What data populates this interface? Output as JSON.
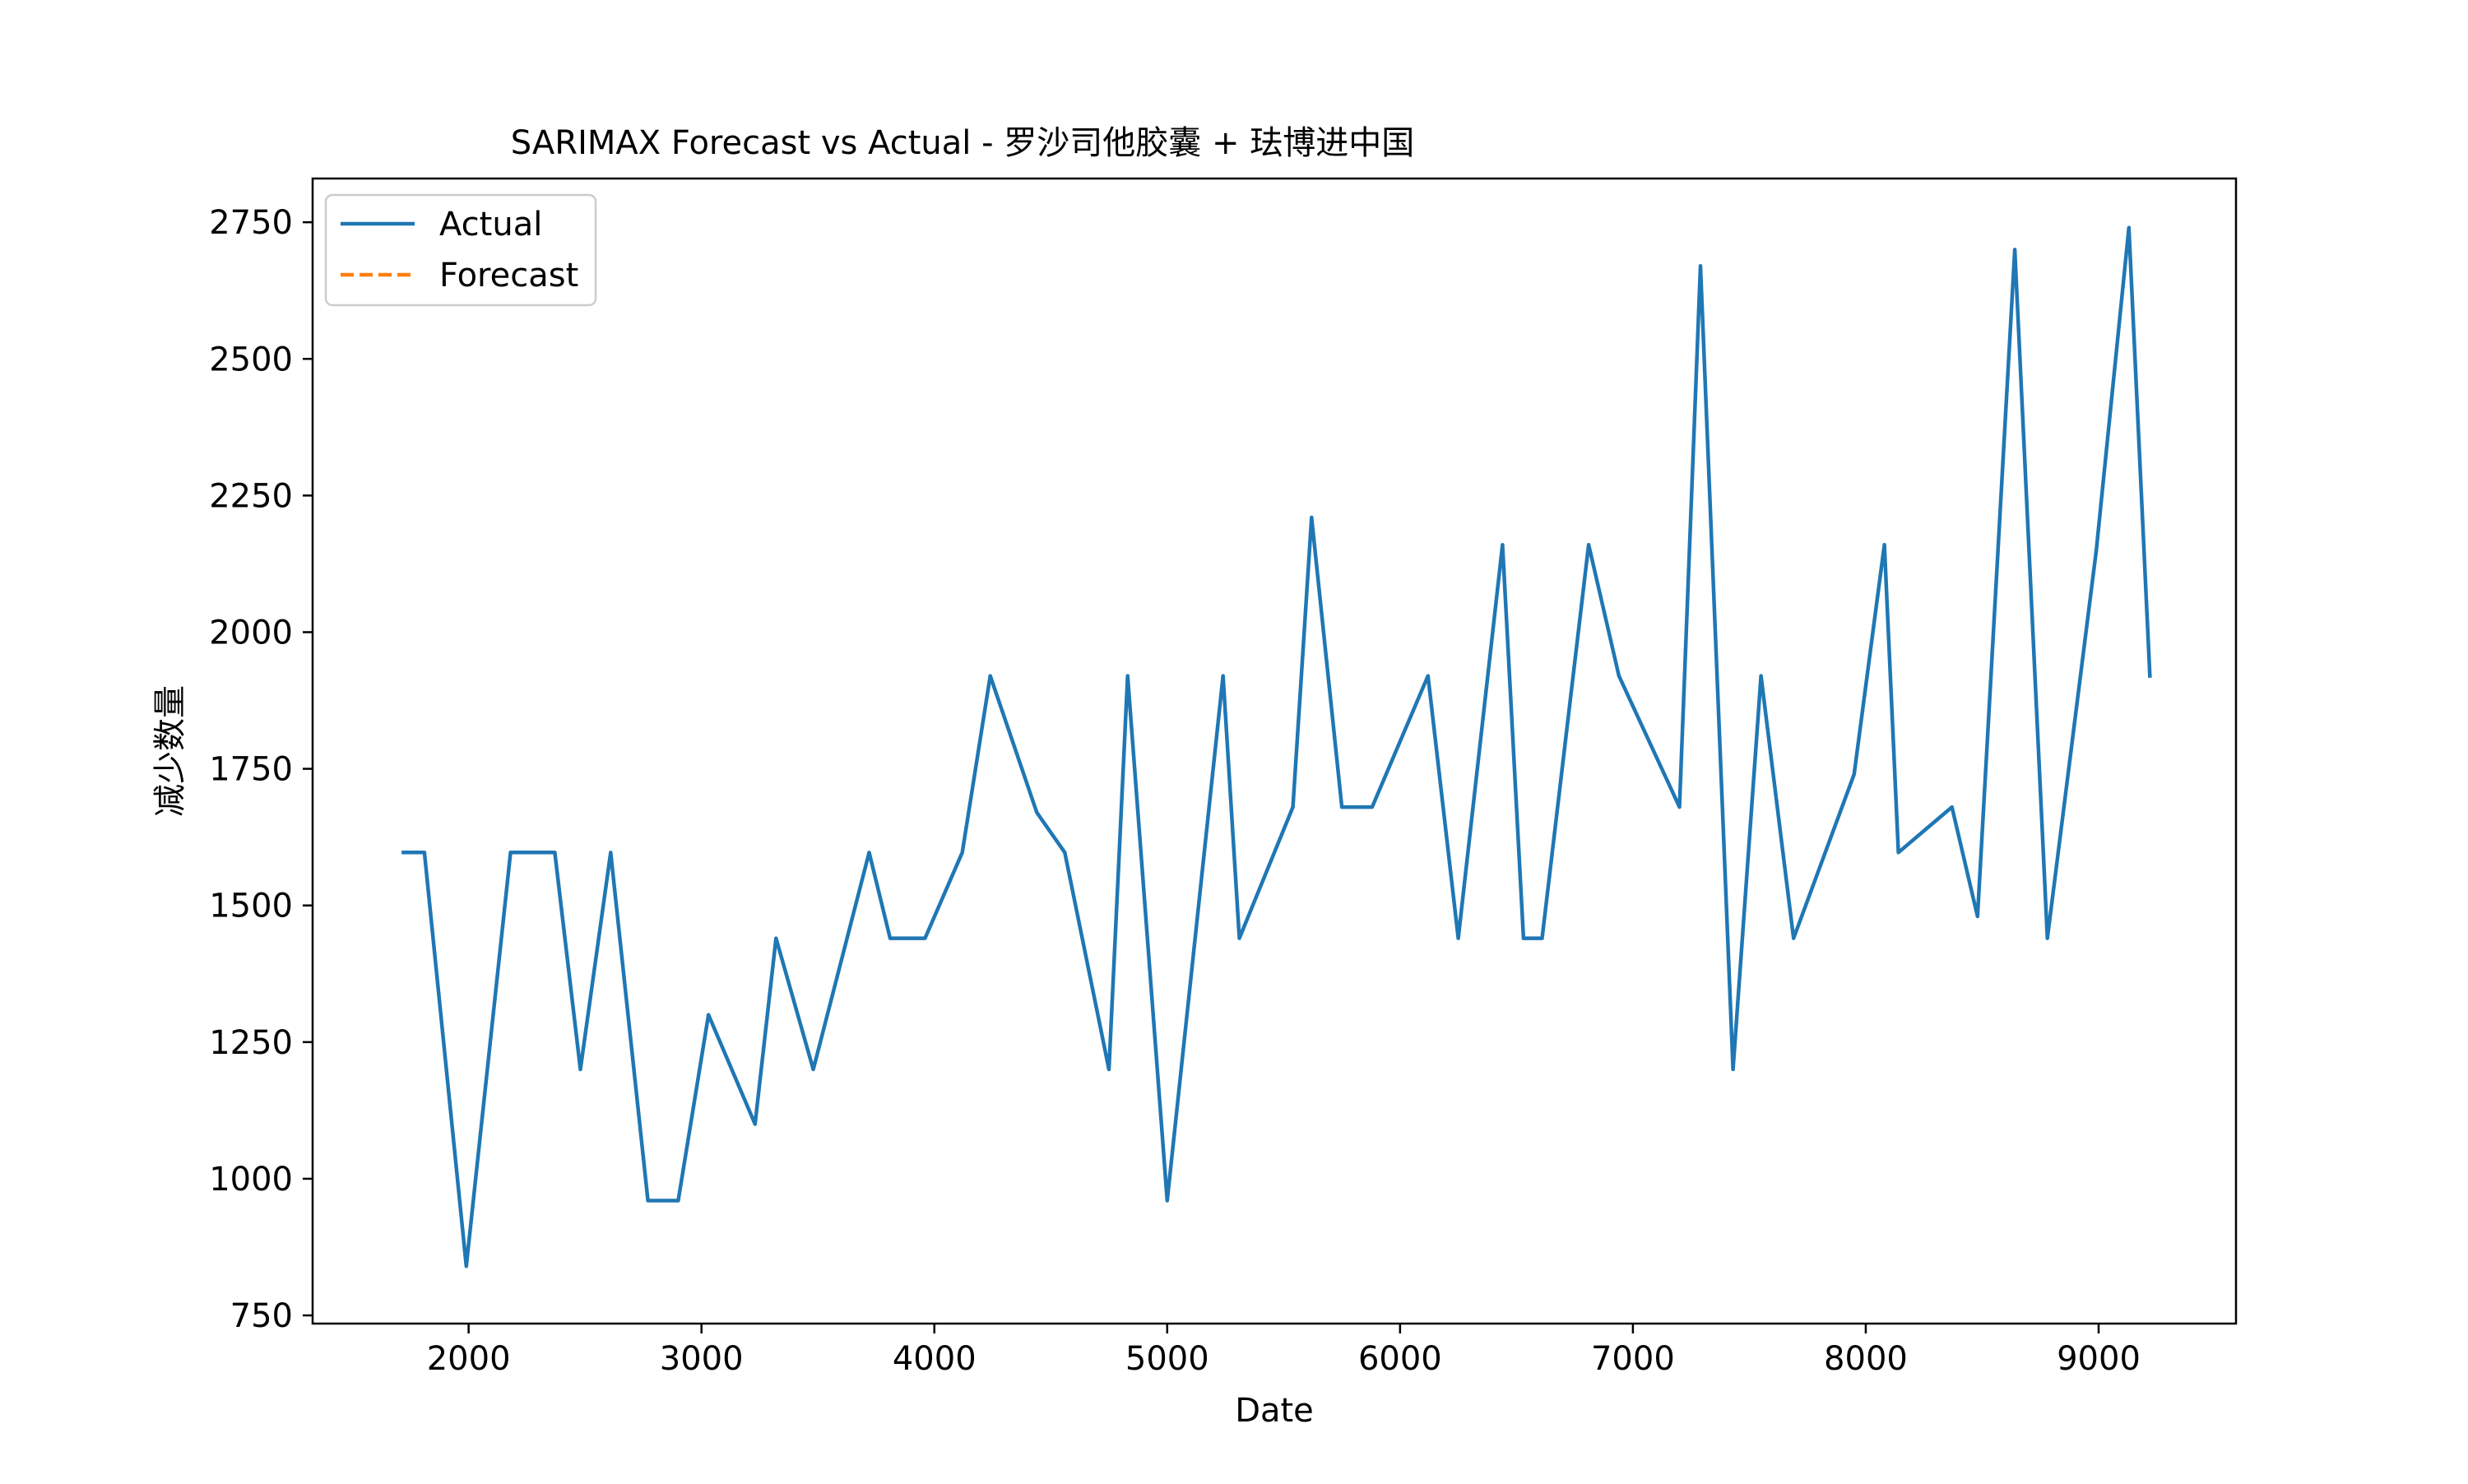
{
  "chart_data": {
    "type": "line",
    "title": "SARIMAX Forecast vs Actual - 罗沙司他胶囊 + 珐博进中国",
    "xlabel": "Date",
    "ylabel": "减少数量",
    "xlim": [
      1330,
      9590
    ],
    "ylim": [
      735,
      2830
    ],
    "xticks": [
      2000,
      3000,
      4000,
      5000,
      6000,
      7000,
      8000,
      9000
    ],
    "yticks": [
      750,
      1000,
      1250,
      1500,
      1750,
      2000,
      2250,
      2500,
      2750
    ],
    "grid": false,
    "legend_position": "upper left",
    "series": [
      {
        "name": "Actual",
        "color": "#1f77b4",
        "style": "solid",
        "x": [
          1720,
          1810,
          1990,
          2180,
          2370,
          2480,
          2610,
          2770,
          2900,
          3030,
          3230,
          3320,
          3480,
          3720,
          3810,
          3960,
          4120,
          4240,
          4440,
          4560,
          4750,
          4830,
          5000,
          5240,
          5310,
          5540,
          5620,
          5750,
          5880,
          6120,
          6250,
          6440,
          6530,
          6610,
          6810,
          6940,
          7200,
          7290,
          7430,
          7550,
          7690,
          7950,
          8080,
          8140,
          8370,
          8480,
          8640,
          8780,
          8990,
          9130,
          9220
        ],
        "y": [
          1597,
          1597,
          840,
          1597,
          1597,
          1200,
          1597,
          960,
          960,
          1300,
          1100,
          1440,
          1200,
          1597,
          1440,
          1440,
          1597,
          1920,
          1670,
          1597,
          1200,
          1920,
          960,
          1920,
          1440,
          1680,
          2210,
          1680,
          1680,
          1920,
          1440,
          2160,
          1440,
          1440,
          2160,
          1920,
          1680,
          2670,
          1200,
          1920,
          1440,
          1740,
          2160,
          1597,
          1680,
          1480,
          2700,
          1440,
          2150,
          2740,
          1920
        ]
      },
      {
        "name": "Forecast",
        "color": "#ff7f0e",
        "style": "dashed",
        "x": [],
        "y": []
      }
    ]
  }
}
